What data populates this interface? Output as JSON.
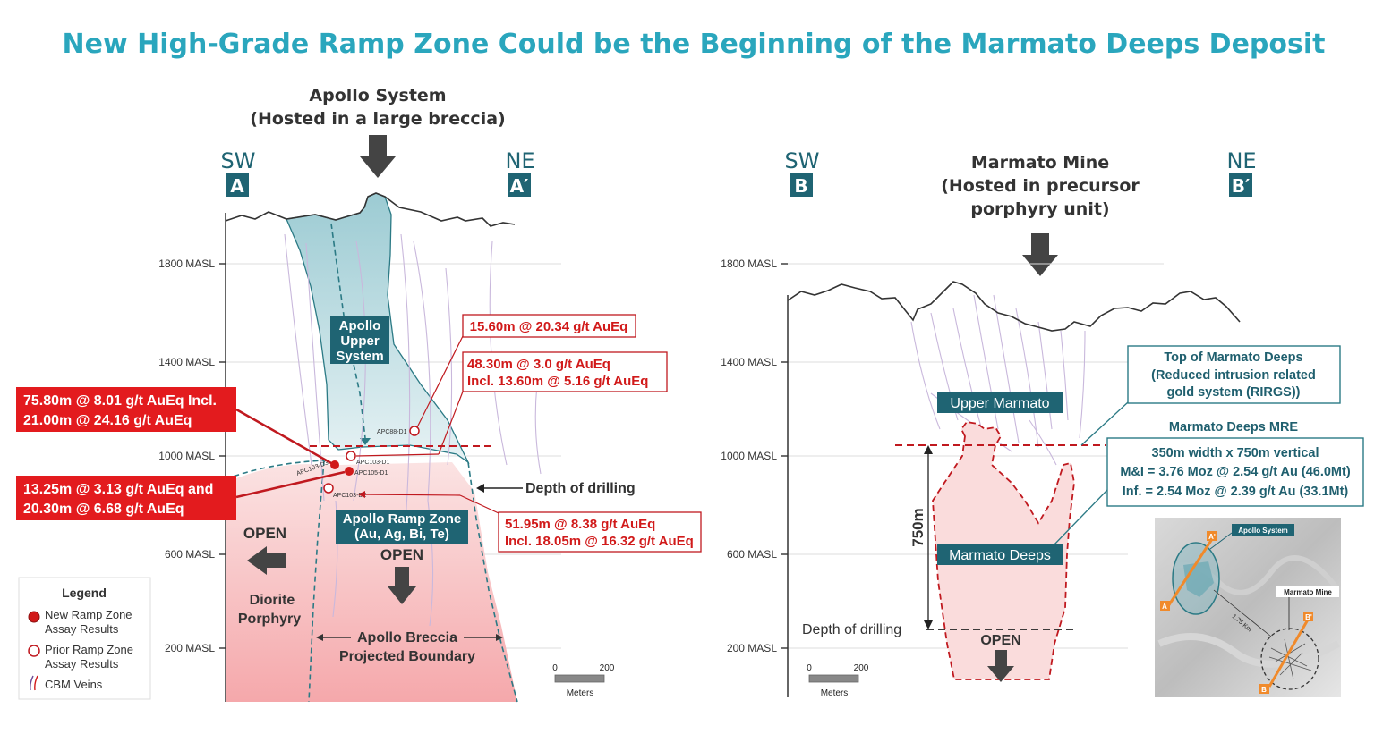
{
  "title": "New High-Grade Ramp Zone Could be the Beginning of the Marmato Deeps Deposit",
  "left": {
    "header_line1": "Apollo System",
    "header_line2": "(Hosted in a large breccia)",
    "sw": "SW",
    "ne": "NE",
    "a": "A",
    "a_prime": "A′",
    "axis": [
      "1800 MASL",
      "1400 MASL",
      "1000 MASL",
      "600 MASL",
      "200 MASL"
    ],
    "upper_system": [
      "Apollo",
      "Upper",
      "System"
    ],
    "ramp_zone": [
      "Apollo Ramp Zone",
      "(Au, Ag, Bi, Te)"
    ],
    "box1": "15.60m @ 20.34 g/t AuEq",
    "box2": [
      "48.30m @ 3.0 g/t AuEq",
      "Incl. 13.60m @ 5.16 g/t AuEq"
    ],
    "box3": [
      "75.80m @ 8.01 g/t AuEq Incl.",
      "21.00m @ 24.16 g/t AuEq"
    ],
    "box4": [
      "13.25m @ 3.13 g/t AuEq and",
      "20.30m @ 6.68 g/t AuEq"
    ],
    "box5": [
      "51.95m @ 8.38 g/t AuEq",
      "Incl. 18.05m @ 16.32 g/t AuEq"
    ],
    "depth_drilling": "Depth of drilling",
    "open1": "OPEN",
    "open2": "OPEN",
    "diorite": [
      "Diorite",
      "Porphyry"
    ],
    "breccia": [
      "Apollo Breccia",
      "Projected Boundary"
    ],
    "holes": [
      "APC88-D1",
      "APC103-D1",
      "APC103-D3",
      "APC105-D1",
      "APC103-D2"
    ],
    "scale": [
      "0",
      "200",
      "Meters"
    ]
  },
  "legend": {
    "title": "Legend",
    "new": [
      "New Ramp Zone",
      "Assay Results"
    ],
    "prior": [
      "Prior Ramp Zone",
      "Assay Results"
    ],
    "veins": "CBM Veins",
    "colors": {
      "new": "#d11a1a",
      "prior": "#ffffff"
    }
  },
  "right": {
    "header_line1": "Marmato Mine",
    "header_line2": "(Hosted in precursor",
    "header_line3": "porphyry unit)",
    "sw": "SW",
    "ne": "NE",
    "b": "B",
    "b_prime": "B′",
    "axis": [
      "1800 MASL",
      "1400 MASL",
      "1000 MASL",
      "600 MASL",
      "200 MASL"
    ],
    "upper_marmato": "Upper Marmato",
    "deeps": "Marmato Deeps",
    "top_box": [
      "Top of Marmato Deeps",
      "(Reduced intrusion related",
      "gold system (RIRGS))"
    ],
    "mre_title": "Marmato Deeps MRE",
    "mre_box": [
      "350m width x 750m vertical",
      "M&I = 3.76 Moz @ 2.54 g/t Au (46.0Mt)",
      "Inf. = 2.54 Moz @ 2.39 g/t Au (33.1Mt)"
    ],
    "vertical": "750m",
    "depth_drilling": "Depth of drilling",
    "open": "OPEN",
    "scale": [
      "0",
      "200",
      "Meters"
    ]
  },
  "inset": {
    "apollo": "Apollo System",
    "marmato": "Marmato Mine",
    "distance": "1.75 Km",
    "a": "A",
    "a_prime": "A'",
    "b": "B",
    "b_prime": "B'"
  },
  "colors": {
    "teal": "#1f6473",
    "red": "#d11a1a",
    "title": "#2aa6bd"
  }
}
